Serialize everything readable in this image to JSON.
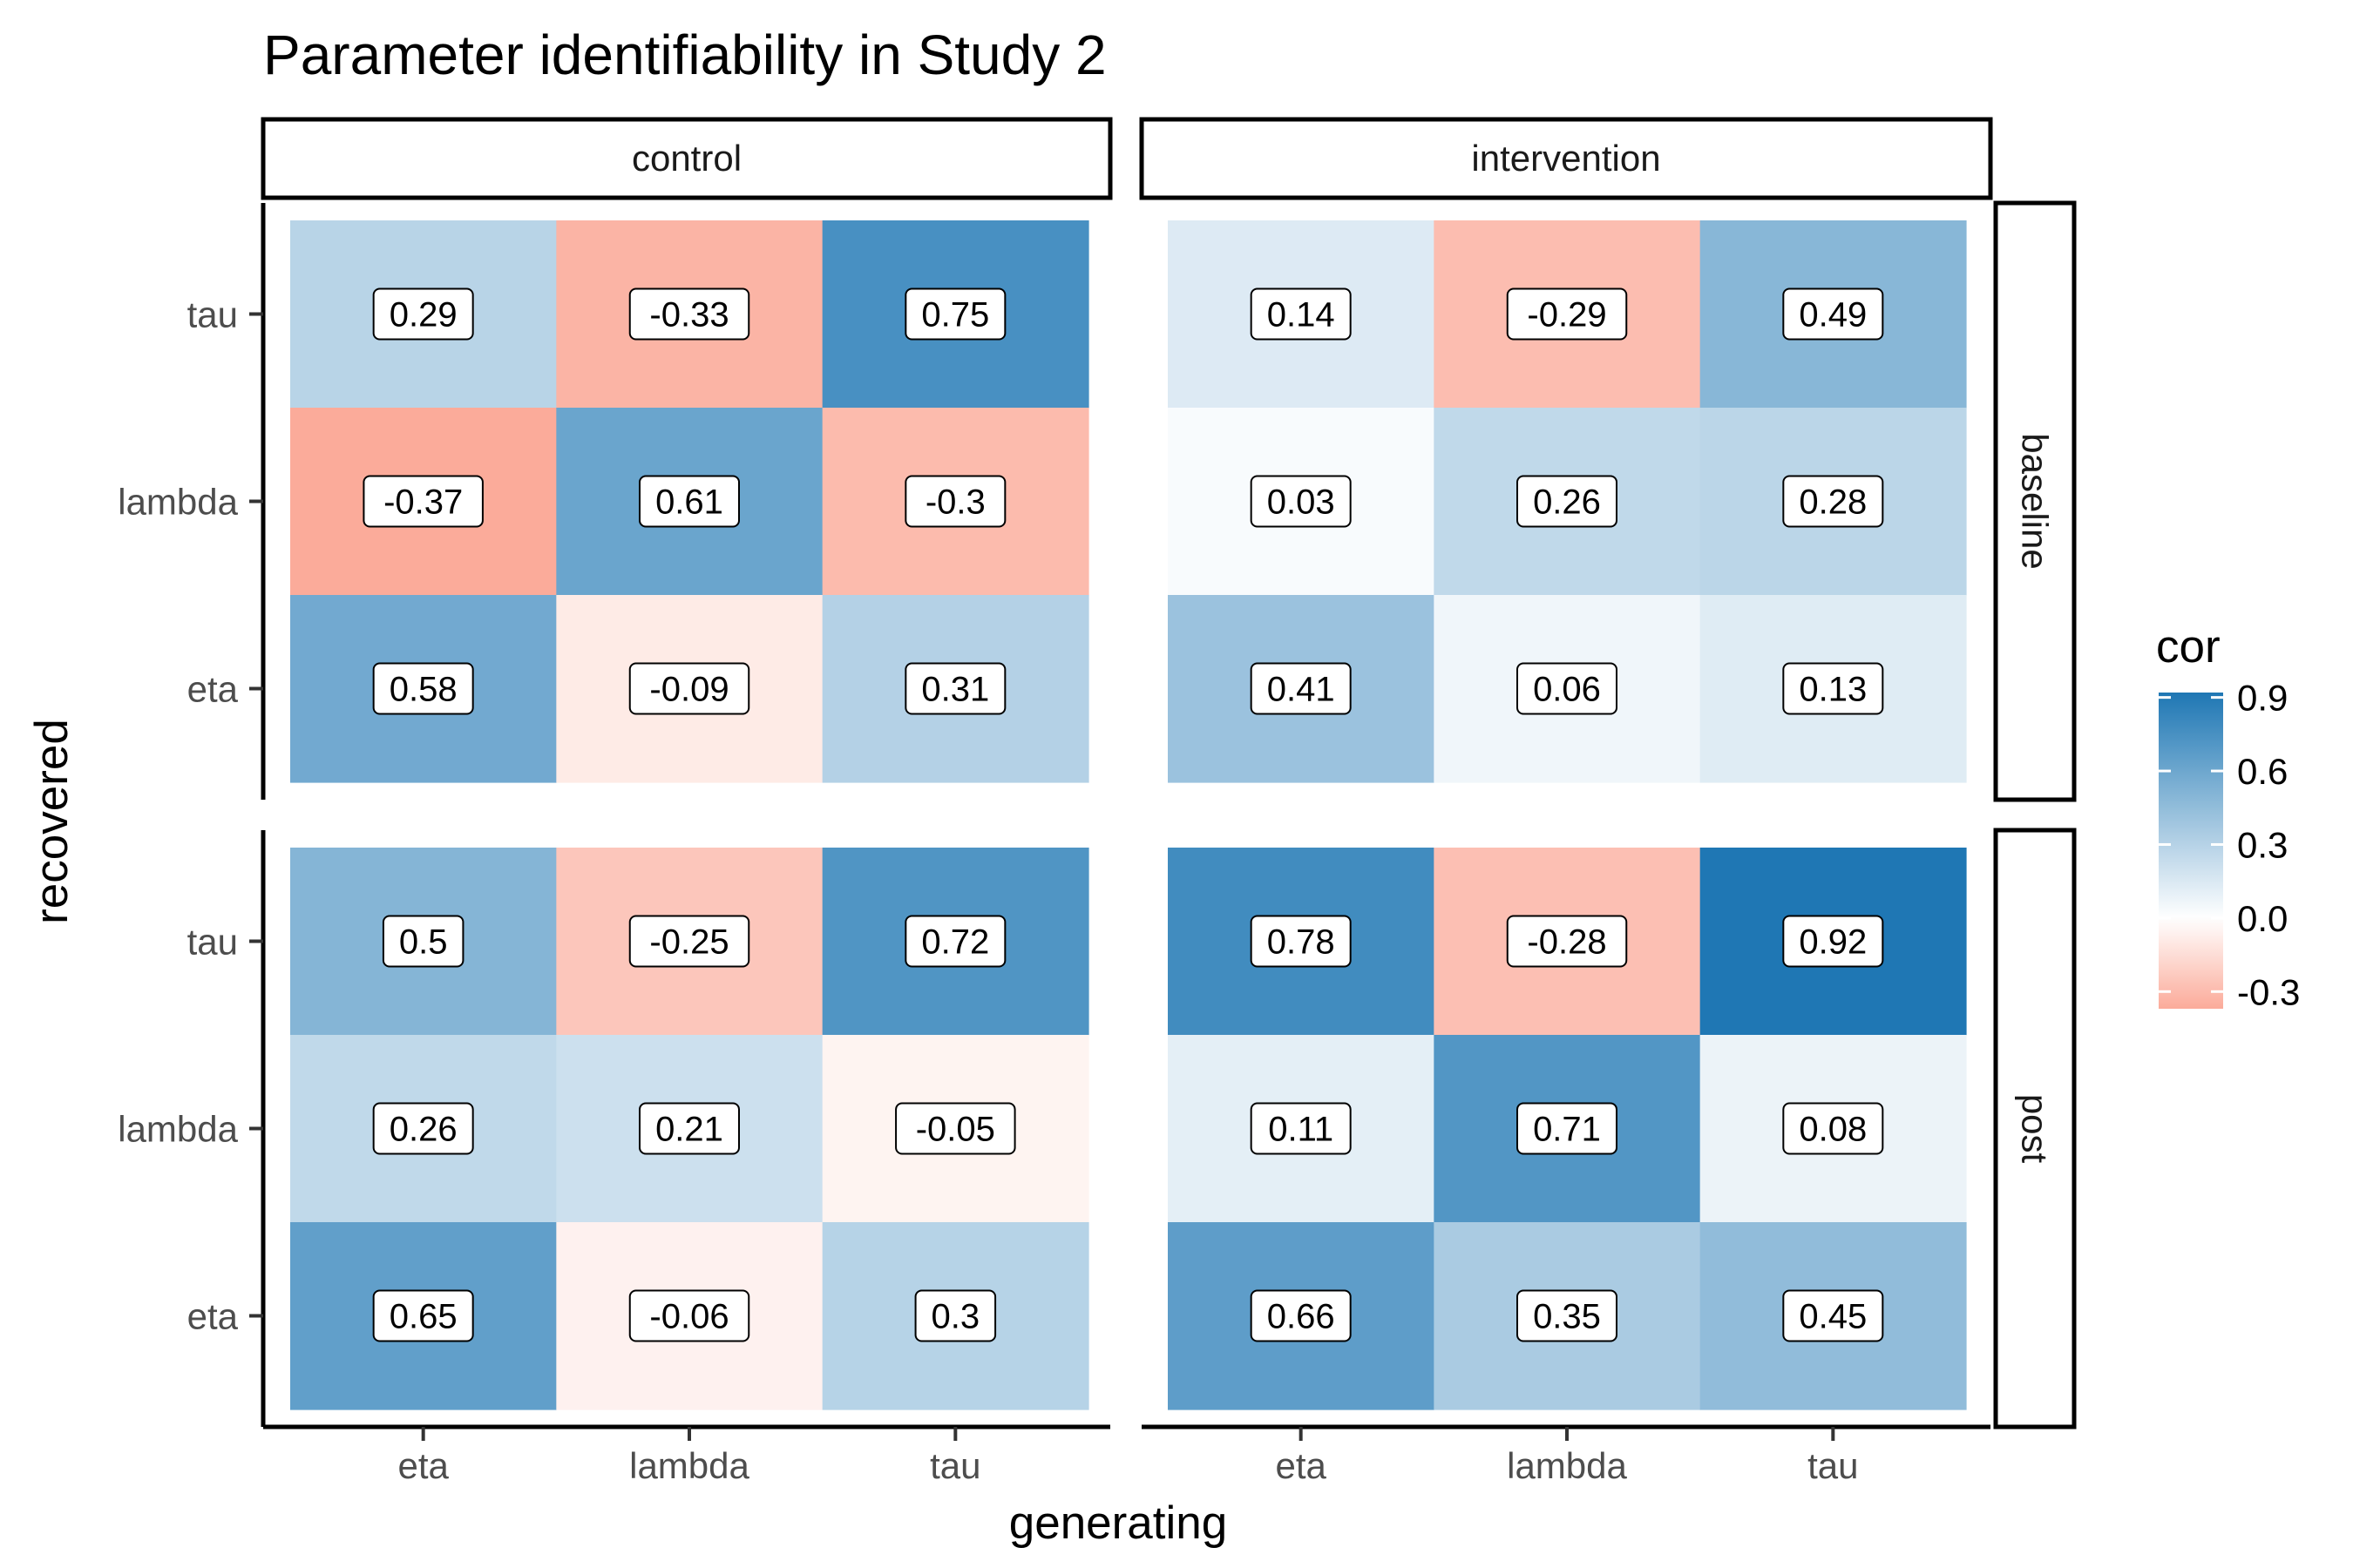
{
  "chart_data": {
    "type": "heatmap",
    "title": "Parameter identifiability in Study 2",
    "xlabel": "generating",
    "ylabel": "recovered",
    "x_categories": [
      "eta",
      "lambda",
      "tau"
    ],
    "y_categories": [
      "eta",
      "lambda",
      "tau"
    ],
    "column_facets": [
      "control",
      "intervention"
    ],
    "row_facets": [
      "baseline",
      "post"
    ],
    "panels": [
      {
        "column": "control",
        "row": "baseline",
        "values": [
          {
            "recovered": "tau",
            "cells": [
              {
                "generating": "eta",
                "value": 0.29,
                "label": "0.29"
              },
              {
                "generating": "lambda",
                "value": -0.33,
                "label": "-0.33"
              },
              {
                "generating": "tau",
                "value": 0.75,
                "label": "0.75"
              }
            ]
          },
          {
            "recovered": "lambda",
            "cells": [
              {
                "generating": "eta",
                "value": -0.37,
                "label": "-0.37"
              },
              {
                "generating": "lambda",
                "value": 0.61,
                "label": "0.61"
              },
              {
                "generating": "tau",
                "value": -0.3,
                "label": "-0.3"
              }
            ]
          },
          {
            "recovered": "eta",
            "cells": [
              {
                "generating": "eta",
                "value": 0.58,
                "label": "0.58"
              },
              {
                "generating": "lambda",
                "value": -0.09,
                "label": "-0.09"
              },
              {
                "generating": "tau",
                "value": 0.31,
                "label": "0.31"
              }
            ]
          }
        ]
      },
      {
        "column": "intervention",
        "row": "baseline",
        "values": [
          {
            "recovered": "tau",
            "cells": [
              {
                "generating": "eta",
                "value": 0.14,
                "label": "0.14"
              },
              {
                "generating": "lambda",
                "value": -0.29,
                "label": "-0.29"
              },
              {
                "generating": "tau",
                "value": 0.49,
                "label": "0.49"
              }
            ]
          },
          {
            "recovered": "lambda",
            "cells": [
              {
                "generating": "eta",
                "value": 0.03,
                "label": "0.03"
              },
              {
                "generating": "lambda",
                "value": 0.26,
                "label": "0.26"
              },
              {
                "generating": "tau",
                "value": 0.28,
                "label": "0.28"
              }
            ]
          },
          {
            "recovered": "eta",
            "cells": [
              {
                "generating": "eta",
                "value": 0.41,
                "label": "0.41"
              },
              {
                "generating": "lambda",
                "value": 0.06,
                "label": "0.06"
              },
              {
                "generating": "tau",
                "value": 0.13,
                "label": "0.13"
              }
            ]
          }
        ]
      },
      {
        "column": "control",
        "row": "post",
        "values": [
          {
            "recovered": "tau",
            "cells": [
              {
                "generating": "eta",
                "value": 0.5,
                "label": "0.5"
              },
              {
                "generating": "lambda",
                "value": -0.25,
                "label": "-0.25"
              },
              {
                "generating": "tau",
                "value": 0.72,
                "label": "0.72"
              }
            ]
          },
          {
            "recovered": "lambda",
            "cells": [
              {
                "generating": "eta",
                "value": 0.26,
                "label": "0.26"
              },
              {
                "generating": "lambda",
                "value": 0.21,
                "label": "0.21"
              },
              {
                "generating": "tau",
                "value": -0.05,
                "label": "-0.05"
              }
            ]
          },
          {
            "recovered": "eta",
            "cells": [
              {
                "generating": "eta",
                "value": 0.65,
                "label": "0.65"
              },
              {
                "generating": "lambda",
                "value": -0.06,
                "label": "-0.06"
              },
              {
                "generating": "tau",
                "value": 0.3,
                "label": "0.3"
              }
            ]
          }
        ]
      },
      {
        "column": "intervention",
        "row": "post",
        "values": [
          {
            "recovered": "tau",
            "cells": [
              {
                "generating": "eta",
                "value": 0.78,
                "label": "0.78"
              },
              {
                "generating": "lambda",
                "value": -0.28,
                "label": "-0.28"
              },
              {
                "generating": "tau",
                "value": 0.92,
                "label": "0.92"
              }
            ]
          },
          {
            "recovered": "lambda",
            "cells": [
              {
                "generating": "eta",
                "value": 0.11,
                "label": "0.11"
              },
              {
                "generating": "lambda",
                "value": 0.71,
                "label": "0.71"
              },
              {
                "generating": "tau",
                "value": 0.08,
                "label": "0.08"
              }
            ]
          },
          {
            "recovered": "eta",
            "cells": [
              {
                "generating": "eta",
                "value": 0.66,
                "label": "0.66"
              },
              {
                "generating": "lambda",
                "value": 0.35,
                "label": "0.35"
              },
              {
                "generating": "tau",
                "value": 0.45,
                "label": "0.45"
              }
            ]
          }
        ]
      }
    ],
    "legend": {
      "title": "cor",
      "placement": "right",
      "breaks": [
        0.9,
        0.6,
        0.3,
        0.0,
        -0.3
      ],
      "break_labels": [
        "0.9",
        "0.6",
        "0.3",
        "0.0",
        "-0.3"
      ],
      "range": [
        -0.37,
        0.92
      ]
    },
    "colors": {
      "low": "#fbab9a",
      "mid": "#ffffff",
      "high": "#1f77b4"
    },
    "grid": false
  }
}
